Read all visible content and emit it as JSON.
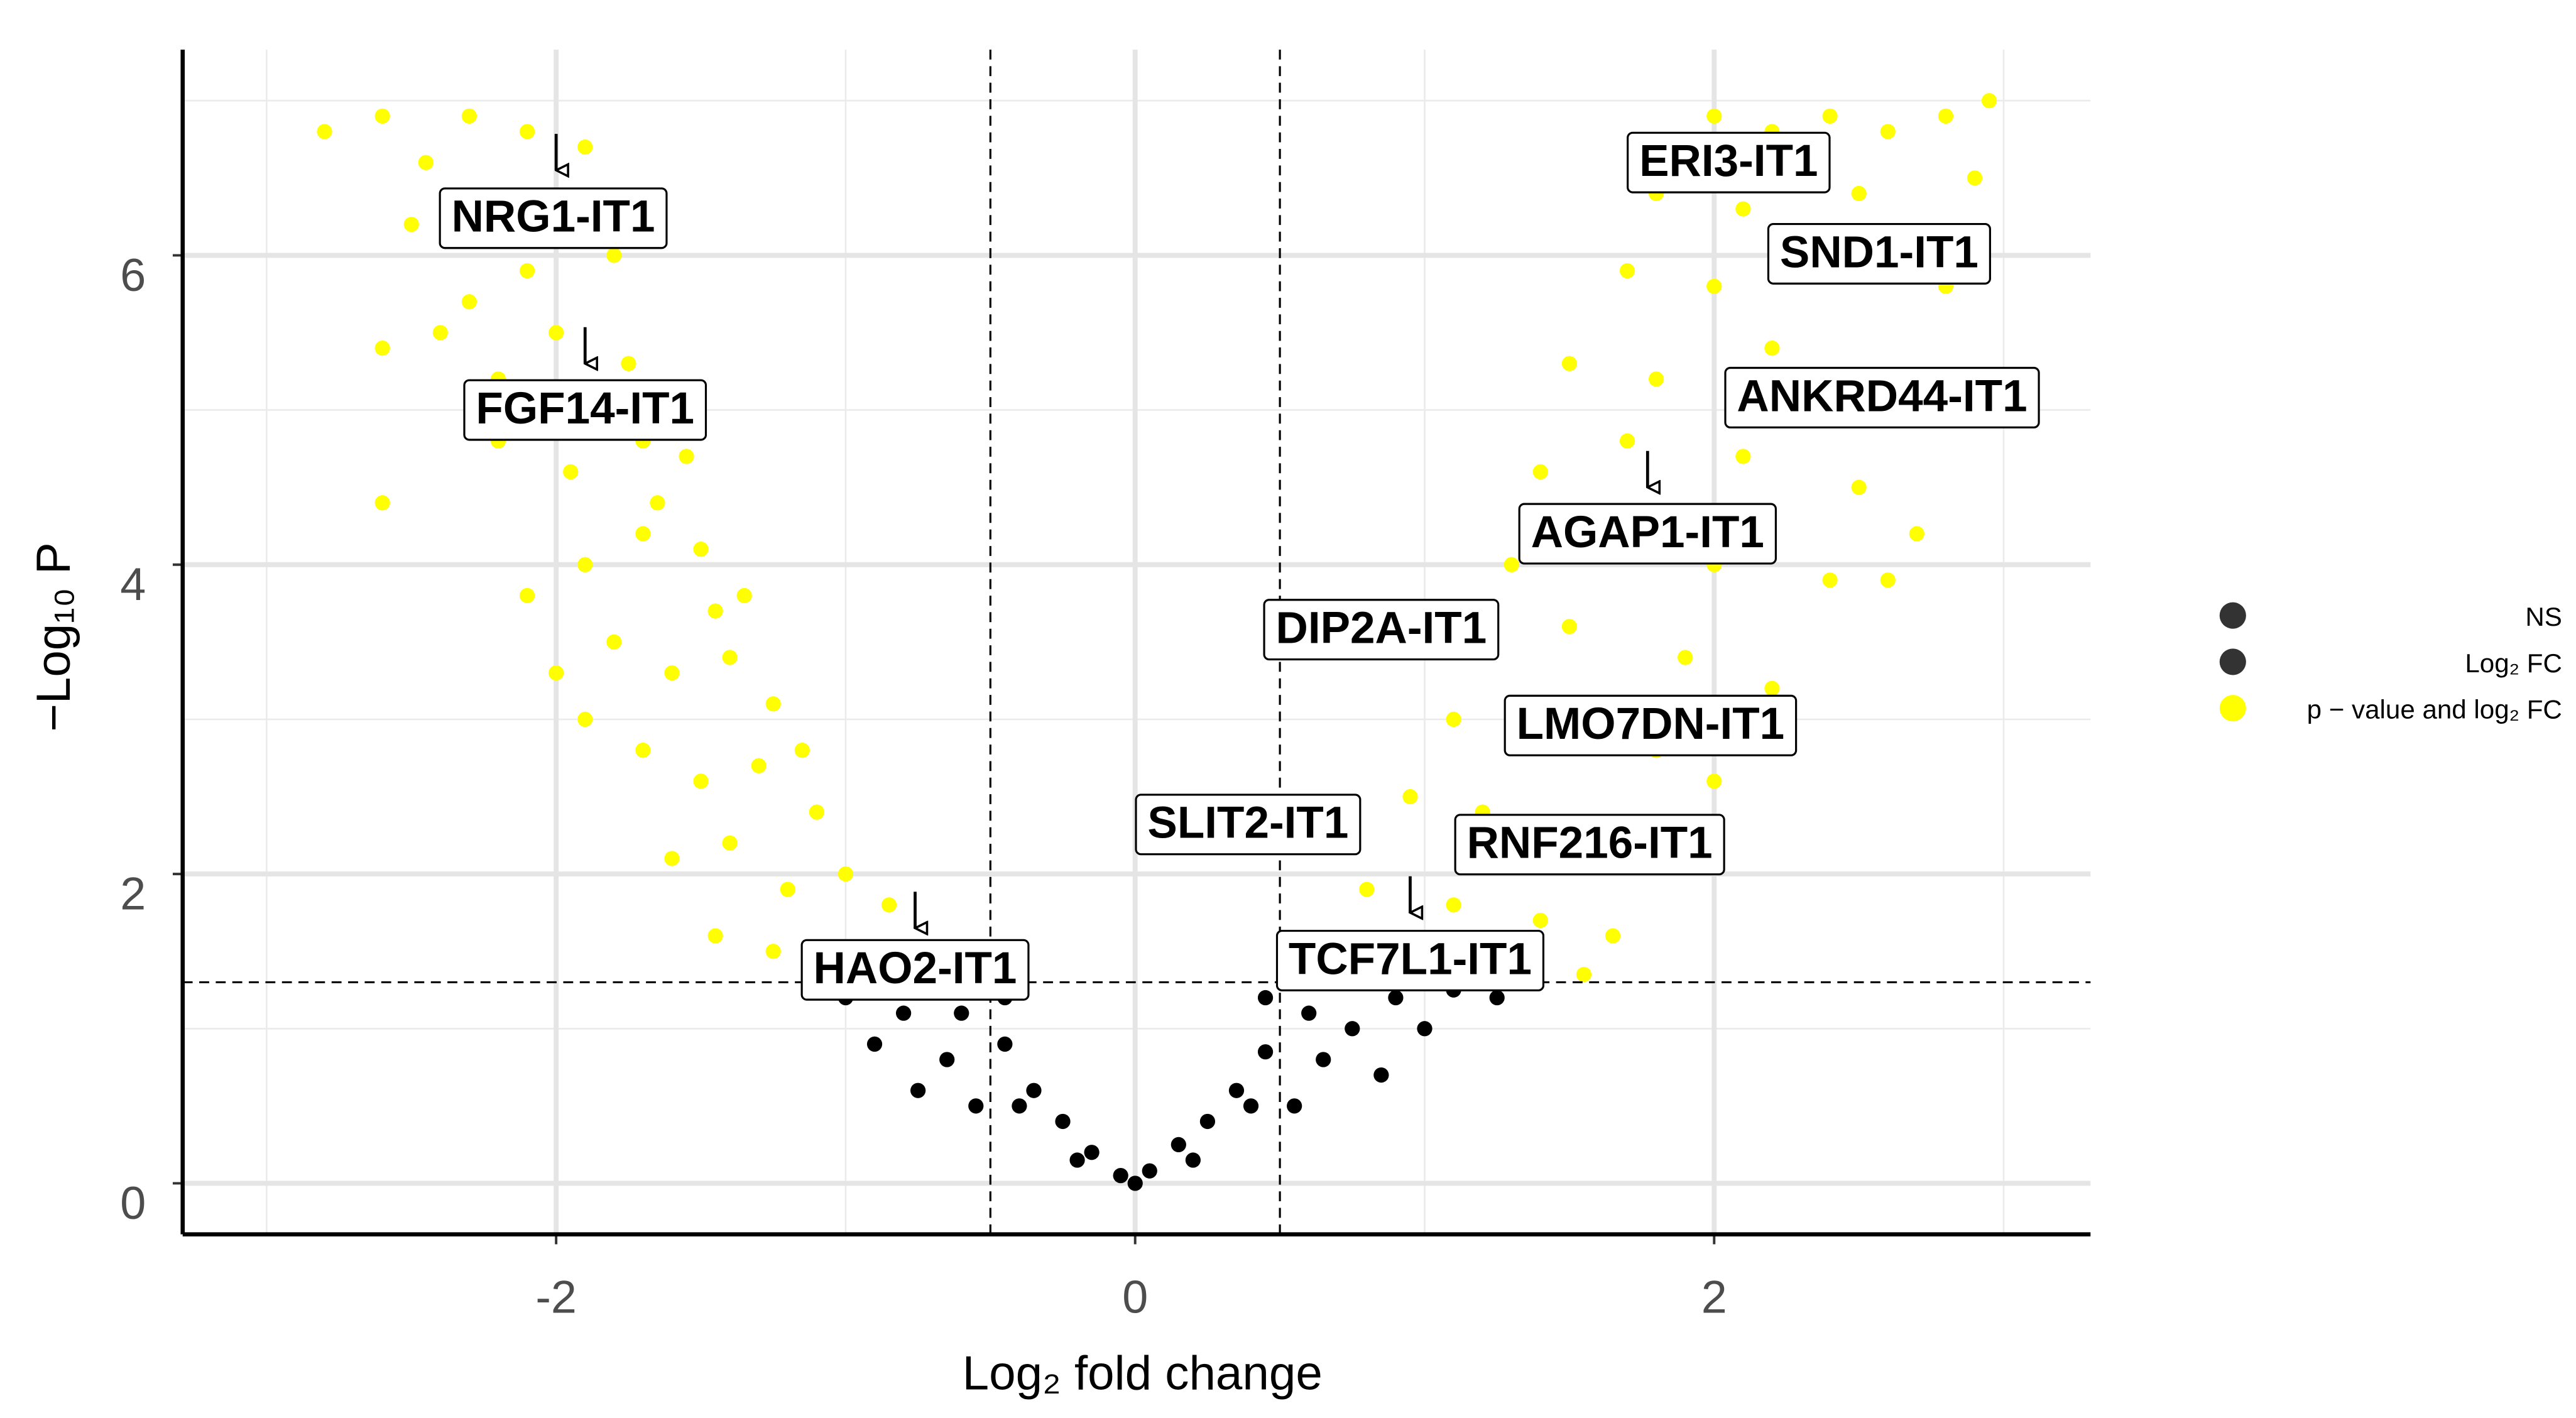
{
  "chart_data": {
    "type": "scatter",
    "x_label": "Log₂ fold change",
    "y_label": "−Log₁₀ P",
    "xlim": [
      -3.29,
      3.3
    ],
    "ylim": [
      -0.33,
      7.33
    ],
    "xticks": [
      -2,
      0,
      2
    ],
    "yticks": [
      0,
      2,
      4,
      6
    ],
    "xminor": [
      -3,
      -1,
      1,
      3
    ],
    "yminor": [
      1,
      3,
      5,
      7
    ],
    "grid": true,
    "vlines": [
      -0.5,
      0.5
    ],
    "hline": 1.3,
    "legend": "right",
    "series": [
      {
        "name": "NS",
        "color": "#000000",
        "x": [
          -0.45,
          -0.35,
          -0.25,
          -0.15,
          -0.05,
          0,
          0.05,
          0.15,
          0.25,
          0.35,
          0.45,
          -0.4,
          0.4,
          -0.2,
          0.2,
          -0.45,
          0.45
        ],
        "values": [
          0.9,
          0.6,
          0.4,
          0.2,
          0.05,
          0,
          0.08,
          0.25,
          0.4,
          0.6,
          0.85,
          0.5,
          0.5,
          0.15,
          0.15,
          1.2,
          1.2
        ]
      },
      {
        "name": "Log₂ FC",
        "color": "#000000",
        "x": [
          -1.0,
          -0.9,
          -0.8,
          -0.75,
          -0.65,
          -0.55,
          -0.6,
          0.55,
          0.65,
          0.75,
          0.9,
          1.1,
          1.25,
          0.85,
          1.0,
          0.6
        ],
        "values": [
          1.2,
          0.9,
          1.1,
          0.6,
          0.8,
          0.5,
          1.1,
          0.5,
          0.8,
          1.0,
          1.2,
          1.25,
          1.2,
          0.7,
          1.0,
          1.1
        ]
      },
      {
        "name": "p − value and log₂ FC",
        "color": "#ffff00",
        "x": [
          -2.8,
          -2.6,
          -2.45,
          -2.3,
          -2.1,
          -1.9,
          -2.5,
          -2.3,
          -2.1,
          -1.8,
          -2.6,
          -2.4,
          -2.2,
          -2.0,
          -1.75,
          -2.6,
          -2.2,
          -1.95,
          -1.7,
          -1.55,
          -2.1,
          -1.9,
          -1.7,
          -1.5,
          -1.35,
          -2.0,
          -1.8,
          -1.6,
          -1.4,
          -1.25,
          -1.9,
          -1.7,
          -1.5,
          -1.3,
          -1.1,
          -1.6,
          -1.4,
          -1.2,
          -1.0,
          -0.85,
          -1.45,
          -1.25,
          -1.05,
          -0.9,
          -0.75,
          -2.3,
          -1.85,
          -1.65,
          -1.45,
          -1.15,
          2.0,
          2.2,
          2.4,
          2.6,
          2.8,
          2.95,
          1.8,
          2.1,
          2.5,
          2.9,
          1.7,
          2.0,
          2.4,
          2.8,
          1.5,
          1.8,
          2.2,
          2.6,
          2.9,
          1.4,
          1.7,
          2.1,
          2.5,
          2.7,
          1.3,
          1.6,
          2.0,
          2.4,
          1.2,
          1.5,
          1.9,
          2.2,
          1.1,
          1.4,
          1.8,
          2.0,
          0.95,
          1.2,
          1.6,
          1.85,
          0.8,
          1.1,
          1.4,
          1.65,
          0.7,
          1.0,
          1.3,
          1.55,
          2.6,
          2.3
        ],
        "values": [
          6.8,
          6.9,
          6.6,
          6.9,
          6.8,
          6.7,
          6.2,
          6.1,
          5.9,
          6.0,
          5.4,
          5.5,
          5.2,
          5.5,
          5.3,
          4.4,
          4.8,
          4.6,
          4.8,
          4.7,
          3.8,
          4.0,
          4.2,
          4.1,
          3.8,
          3.3,
          3.5,
          3.3,
          3.4,
          3.1,
          3.0,
          2.8,
          2.6,
          2.7,
          2.4,
          2.1,
          2.2,
          1.9,
          2.0,
          1.8,
          1.6,
          1.5,
          1.45,
          1.5,
          1.45,
          5.7,
          5.1,
          4.4,
          3.7,
          2.8,
          6.9,
          6.8,
          6.9,
          6.8,
          6.9,
          7.0,
          6.4,
          6.3,
          6.4,
          6.5,
          5.9,
          5.8,
          5.9,
          5.8,
          5.3,
          5.2,
          5.4,
          5.2,
          5.0,
          4.6,
          4.8,
          4.7,
          4.5,
          4.2,
          4.0,
          4.1,
          4.0,
          3.9,
          3.5,
          3.6,
          3.4,
          3.2,
          3.0,
          3.1,
          2.8,
          2.6,
          2.5,
          2.4,
          2.3,
          2.1,
          1.9,
          1.8,
          1.7,
          1.6,
          1.45,
          1.4,
          1.45,
          1.35,
          3.9,
          5.0
        ]
      }
    ],
    "annotations": [
      {
        "text": "NRG1-IT1",
        "x": -2.01,
        "y": 6.24,
        "px": -2.0,
        "py": 6.55
      },
      {
        "text": "FGF14-IT1",
        "x": -1.9,
        "y": 5.0,
        "px": -1.9,
        "py": 5.3
      },
      {
        "text": "HAO2-IT1",
        "x": -0.76,
        "y": 1.38,
        "px": -0.76,
        "py": 1.65
      },
      {
        "text": "ERI3-IT1",
        "x": 2.05,
        "y": 6.6
      },
      {
        "text": "SND1-IT1",
        "x": 2.57,
        "y": 6.01
      },
      {
        "text": "ANKRD44-IT1",
        "x": 2.58,
        "y": 5.08
      },
      {
        "text": "AGAP1-IT1",
        "x": 1.77,
        "y": 4.2,
        "px": 1.77,
        "py": 4.5
      },
      {
        "text": "DIP2A-IT1",
        "x": 0.85,
        "y": 3.58
      },
      {
        "text": "LMO7DN-IT1",
        "x": 1.78,
        "y": 2.96
      },
      {
        "text": "SLIT2-IT1",
        "x": 0.39,
        "y": 2.32
      },
      {
        "text": "RNF216-IT1",
        "x": 1.57,
        "y": 2.19
      },
      {
        "text": "TCF7L1-IT1",
        "x": 0.95,
        "y": 1.44,
        "px": 0.95,
        "py": 1.75
      }
    ]
  }
}
